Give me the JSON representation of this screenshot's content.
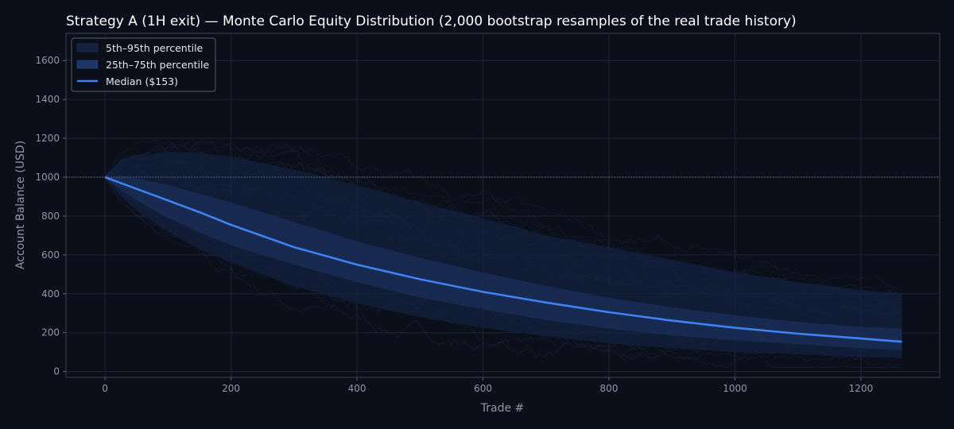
{
  "chart_data": {
    "type": "area",
    "title": "Strategy A (1H exit) — Monte Carlo Equity Distribution (2,000 bootstrap resamples of the real trade history)",
    "xlabel": "Trade #",
    "ylabel": "Account Balance (USD)",
    "xlim": [
      -62,
      1325
    ],
    "ylim": [
      -30,
      1740
    ],
    "xticks": [
      0,
      200,
      400,
      600,
      800,
      1000,
      1200
    ],
    "yticks": [
      0,
      200,
      400,
      600,
      800,
      1000,
      1200,
      1400,
      1600
    ],
    "grid": true,
    "legend_position": "top-left",
    "reference_line": {
      "y": 1000,
      "style": "dotted"
    },
    "x": [
      0,
      25,
      50,
      100,
      150,
      200,
      300,
      400,
      500,
      600,
      700,
      800,
      900,
      1000,
      1100,
      1200,
      1265
    ],
    "series": [
      {
        "name": "5th–95th percentile",
        "kind": "band",
        "lower": [
          1000,
          900,
          830,
          720,
          630,
          560,
          440,
          350,
          280,
          225,
          180,
          145,
          120,
          100,
          88,
          75,
          68
        ],
        "upper": [
          1000,
          1090,
          1110,
          1130,
          1125,
          1105,
          1040,
          960,
          870,
          790,
          700,
          640,
          575,
          510,
          460,
          420,
          400
        ],
        "color": "#13203e"
      },
      {
        "name": "25th–75th percentile",
        "kind": "band",
        "lower": [
          1000,
          935,
          880,
          790,
          715,
          650,
          550,
          460,
          380,
          320,
          265,
          220,
          185,
          160,
          140,
          120,
          110
        ],
        "upper": [
          1000,
          1005,
          995,
          960,
          915,
          870,
          770,
          670,
          585,
          510,
          440,
          380,
          330,
          290,
          255,
          230,
          220
        ],
        "color": "#1d3566"
      },
      {
        "name": "Median ($153)",
        "kind": "line",
        "values": [
          1000,
          970,
          940,
          880,
          820,
          755,
          640,
          550,
          475,
          410,
          355,
          305,
          262,
          225,
          195,
          170,
          153
        ],
        "color": "#3d82f0"
      }
    ]
  }
}
